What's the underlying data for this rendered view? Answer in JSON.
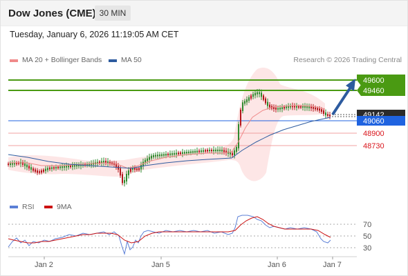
{
  "header": {
    "title": "Dow Jones (CME)",
    "timeframe": "30 MIN"
  },
  "datetime": "Tuesday, January 6, 2026 11:19:05 AM CET",
  "legend": {
    "ma20": {
      "label": "MA 20 + Bollinger Bands",
      "color": "#f08a8a"
    },
    "ma50": {
      "label": "MA 50",
      "color": "#2d5b9f"
    },
    "copyright": "Research © 2026 Trading Central"
  },
  "levels": {
    "r2": "49600",
    "r1": "49460",
    "last": "49142",
    "pivot": "49060",
    "s1": "48900",
    "s2": "48730"
  },
  "rsi_legend": {
    "rsi": "RSI",
    "ma": "9MA"
  },
  "rsi_axis": [
    "70",
    "50",
    "30"
  ],
  "x_axis": [
    "Jan 2",
    "Jan 5",
    "Jan 6",
    "Jan 7"
  ],
  "colors": {
    "resistance": "#4a9a12",
    "support": "#d9141b",
    "pivot": "#1f63e0",
    "last": "#2b2b2b",
    "up": "#2e8a2e",
    "down": "#b3161b",
    "rsi": "#5b7fd6",
    "rsi_ma": "#cc1111"
  }
}
